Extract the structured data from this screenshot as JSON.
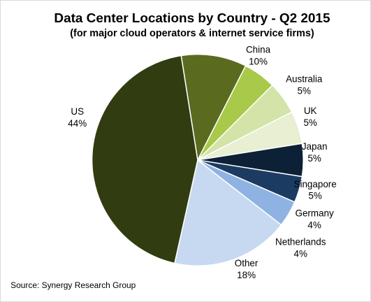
{
  "chart_data": {
    "type": "pie",
    "title": "Data Center Locations by Country - Q2 2015",
    "subtitle": "(for major cloud operators & internet service firms)",
    "source": "Source: Synergy Research Group",
    "slices": [
      {
        "label": "China",
        "value_label": "10%",
        "value": 10,
        "color": "#5a6b1f"
      },
      {
        "label": "Australia",
        "value_label": "5%",
        "value": 5,
        "color": "#a9c94a"
      },
      {
        "label": "UK",
        "value_label": "5%",
        "value": 5,
        "color": "#d4e3a8"
      },
      {
        "label": "Japan",
        "value_label": "5%",
        "value": 5,
        "color": "#e8efd2"
      },
      {
        "label": "Singapore",
        "value_label": "5%",
        "value": 5,
        "color": "#0c2136"
      },
      {
        "label": "Germany",
        "value_label": "4%",
        "value": 4,
        "color": "#1c3b63"
      },
      {
        "label": "Netherlands",
        "value_label": "4%",
        "value": 4,
        "color": "#8eb3e2"
      },
      {
        "label": "Other",
        "value_label": "18%",
        "value": 18,
        "color": "#c6d9f1"
      },
      {
        "label": "US",
        "value_label": "44%",
        "value": 44,
        "color": "#313c10"
      }
    ]
  }
}
